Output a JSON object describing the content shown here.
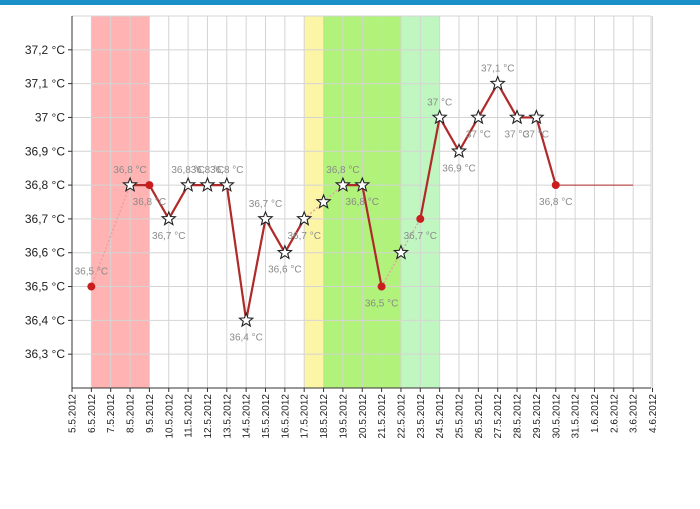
{
  "chart_data": {
    "type": "line",
    "title": "",
    "xlabel": "",
    "ylabel": "",
    "ylim": [
      36.2,
      37.3
    ],
    "grid": true,
    "yticks": [
      36.3,
      36.4,
      36.5,
      36.6,
      36.7,
      36.8,
      36.9,
      37.0,
      37.1,
      37.2
    ],
    "ytick_labels": [
      "36,3 °C",
      "36,4 °C",
      "36,5 °C",
      "36,6 °C",
      "36,7 °C",
      "36,8 °C",
      "36,9 °C",
      "37 °C",
      "37,1 °C",
      "37,2 °C"
    ],
    "categories": [
      "5.5.2012",
      "6.5.2012",
      "7.5.2012",
      "8.5.2012",
      "9.5.2012",
      "10.5.2012",
      "11.5.2012",
      "12.5.2012",
      "13.5.2012",
      "14.5.2012",
      "15.5.2012",
      "16.5.2012",
      "17.5.2012",
      "18.5.2012",
      "19.5.2012",
      "20.5.2012",
      "21.5.2012",
      "22.5.2012",
      "23.5.2012",
      "24.5.2012",
      "25.5.2012",
      "26.5.2012",
      "27.5.2012",
      "28.5.2012",
      "29.5.2012",
      "30.5.2012",
      "31.5.2012",
      "1.6.2012",
      "2.6.2012",
      "3.6.2012",
      "4.6.2012"
    ],
    "bands": [
      {
        "from": "6.5.2012",
        "to": "9.5.2012",
        "color": "#ffb3b3"
      },
      {
        "from": "17.5.2012",
        "to": "18.5.2012",
        "color": "#fdf5a6"
      },
      {
        "from": "18.5.2012",
        "to": "22.5.2012",
        "color": "#b0f27a"
      },
      {
        "from": "22.5.2012",
        "to": "24.5.2012",
        "color": "#c0f7c0"
      }
    ],
    "series": [
      {
        "values": [
          null,
          36.5,
          null,
          36.8,
          36.8,
          36.7,
          36.8,
          36.8,
          36.8,
          36.4,
          36.7,
          36.6,
          36.7,
          36.75,
          36.8,
          36.8,
          36.5,
          36.6,
          36.7,
          37.0,
          36.9,
          37.0,
          37.1,
          37.0,
          37.0,
          36.8,
          null,
          null,
          null,
          null,
          null
        ],
        "markers": [
          "",
          "dot",
          "",
          "star",
          "dot",
          "star",
          "star",
          "star",
          "star",
          "star",
          "star",
          "star",
          "star",
          "star",
          "star",
          "star",
          "dot",
          "star",
          "dot",
          "star",
          "star",
          "star",
          "star",
          "star",
          "star",
          "dot",
          "",
          "",
          "",
          "",
          ""
        ],
        "labels": [
          "",
          "36,5 °C",
          "",
          "36,8 °C",
          "36,8 °C",
          "36,7 °C",
          "36,8 °C",
          "36,8 °C",
          "36,8 °C",
          "36,4 °C",
          "36,7 °C",
          "36,6 °C",
          "36,7 °C",
          "",
          "36,8 °C",
          "36,8 °C",
          "36,5 °C",
          "",
          "36,7 °C",
          "37 °C",
          "36,9 °C",
          "37 °C",
          "37,1 °C",
          "37 °C",
          "37 °C",
          "36,8 °C",
          "",
          "",
          "",
          "",
          ""
        ],
        "extend_to": "3.6.2012"
      }
    ],
    "colors": {
      "line": "#b02a2a",
      "dotted_line": "#e6a3a3",
      "marker": "#c81e1e",
      "grid": "#d4d4d4",
      "axis": "#333333",
      "label": "#8a8a8a"
    }
  }
}
